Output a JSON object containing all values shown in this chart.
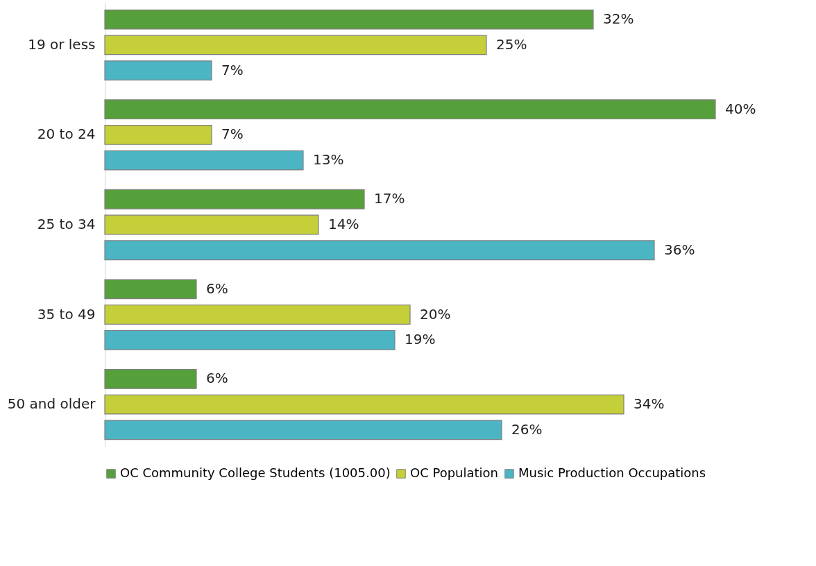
{
  "chart_data": {
    "type": "bar",
    "orientation": "horizontal",
    "categories": [
      "19 or less",
      "20 to 24",
      "25 to 34",
      "35 to 49",
      "50 and older"
    ],
    "series": [
      {
        "name": "OC Community College Students (1005.00)",
        "color": "#56a03c",
        "values": [
          32,
          40,
          17,
          6,
          6
        ],
        "value_labels": [
          "32%",
          "40%",
          "17%",
          "6%",
          "6%"
        ]
      },
      {
        "name": "OC Population",
        "color": "#c4cf3a",
        "values": [
          25,
          7,
          14,
          20,
          34
        ],
        "value_labels": [
          "25%",
          "7%",
          "14%",
          "20%",
          "34%"
        ]
      },
      {
        "name": "Music Production Occupations",
        "color": "#4bb5c4",
        "values": [
          7,
          13,
          36,
          19,
          26
        ],
        "value_labels": [
          "7%",
          "13%",
          "36%",
          "19%",
          "26%"
        ]
      }
    ],
    "legend": "bottom"
  }
}
